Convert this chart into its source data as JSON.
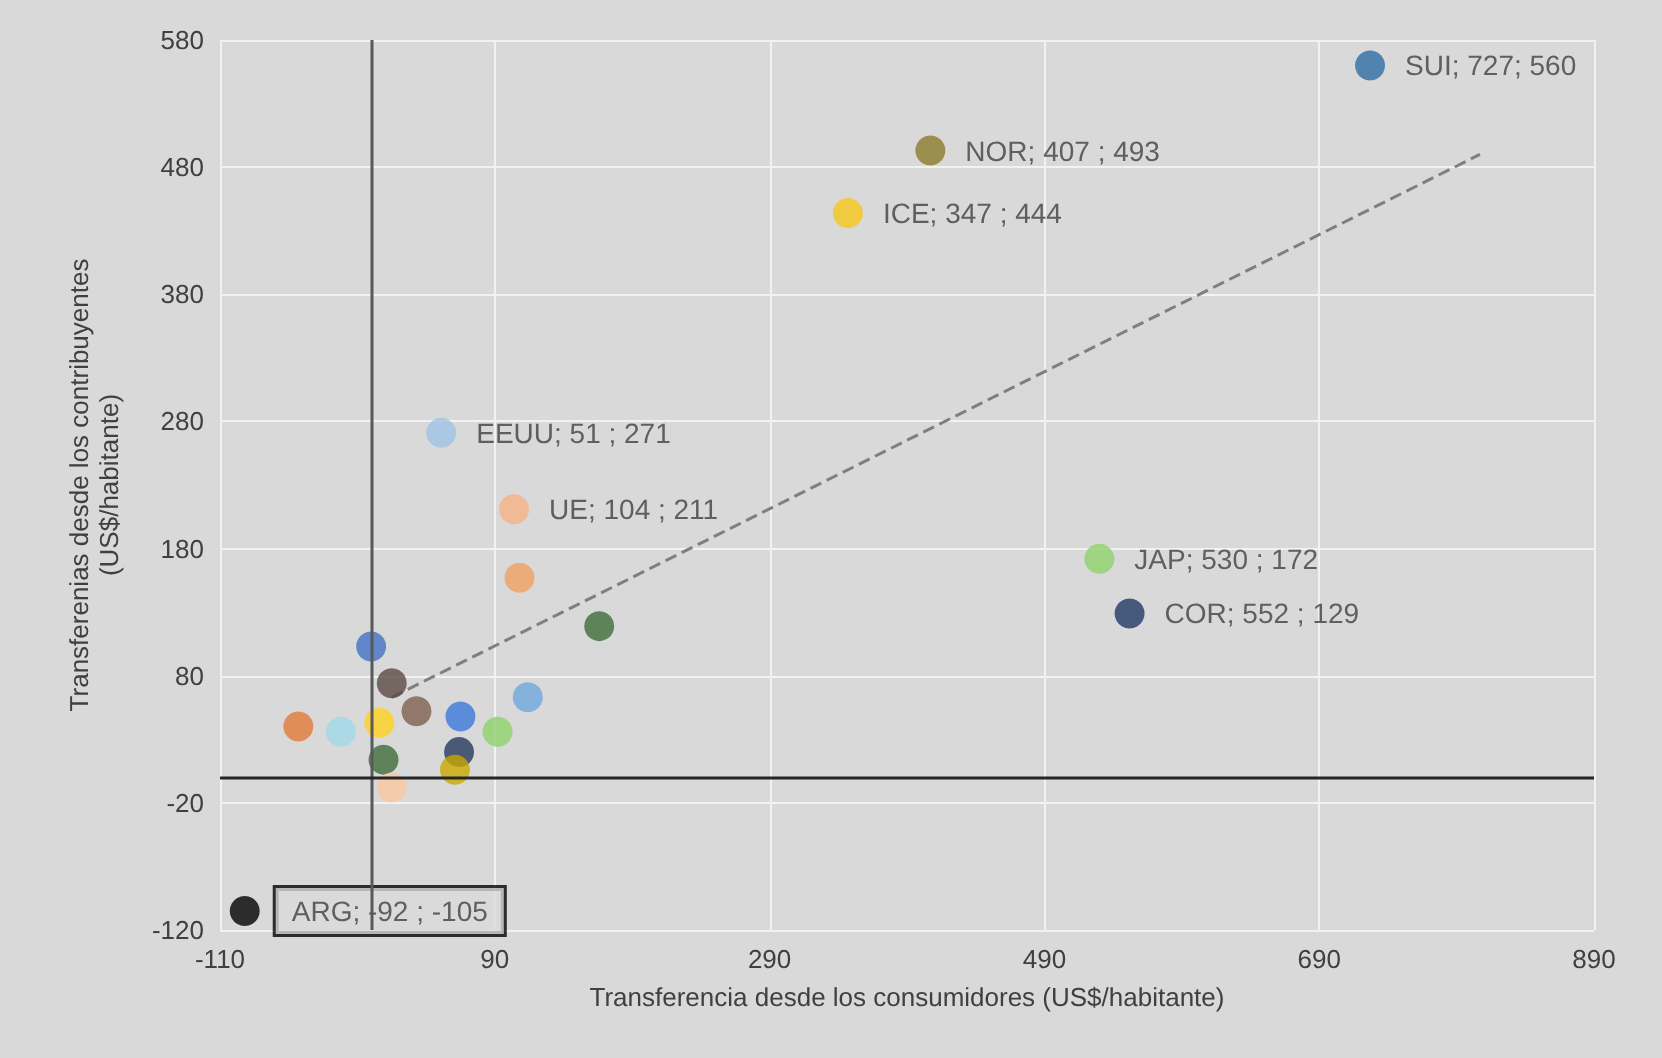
{
  "chart_data": {
    "type": "scatter",
    "xlabel": "Transferencia desde los consumidores (US$/habitante)",
    "ylabel": "Transferenias desde los contribuyentes\n(US$/habitante)",
    "xlim": [
      -110,
      890
    ],
    "xticks": [
      -110,
      90,
      290,
      490,
      690,
      890
    ],
    "ylim": [
      -120,
      580
    ],
    "yticks": [
      -120,
      -20,
      80,
      180,
      280,
      380,
      480,
      580
    ],
    "grid": true,
    "marker": "circle",
    "ref_lines": [
      {
        "axis": "x",
        "value": 0,
        "color": "#595959"
      },
      {
        "axis": "y",
        "value": 0,
        "color": "#262626"
      }
    ],
    "series": [
      {
        "x": [
          727,
          407,
          347,
          51,
          104,
          530,
          552,
          -92,
          0,
          15,
          33,
          -53,
          -22,
          6,
          65,
          92,
          114,
          108,
          166,
          9,
          64,
          61,
          15
        ],
        "values": [
          560,
          493,
          444,
          271,
          211,
          172,
          129,
          -105,
          103,
          74,
          52,
          40,
          36,
          43,
          48,
          36,
          63,
          157,
          119,
          14,
          20,
          6,
          -8
        ],
        "colors": [
          "#2e6da4",
          "#8b7a2a",
          "#f5c518",
          "#9dc3e6",
          "#f4b183",
          "#8fd16b",
          "#1f3864",
          "#000000",
          "#4472c4",
          "#5a4a42",
          "#7f5f4f",
          "#e07b39",
          "#9fd8e8",
          "#ffd21f",
          "#3a78d8",
          "#8fd16b",
          "#6fa8dc",
          "#f0a060",
          "#3e6b3a",
          "#3e6b3a",
          "#263a5c",
          "#c9a800",
          "#f8c8a0"
        ],
        "value_labels": [
          "SUI; 727; 560",
          "NOR; 407 ; 493",
          "ICE; 347 ; 444",
          "EEUU; 51 ; 271",
          "UE; 104 ; 211",
          "JAP; 530 ; 172",
          "COR; 552 ; 129",
          "ARG; -92 ; -105",
          null,
          null,
          null,
          null,
          null,
          null,
          null,
          null,
          null,
          null,
          null,
          null,
          null,
          null,
          null
        ]
      },
      {
        "type": "line",
        "color": "#7f7f7f",
        "line_style": "dashed",
        "marker": "none",
        "x": [
          15,
          807
        ],
        "values": [
          63,
          490
        ]
      }
    ]
  }
}
